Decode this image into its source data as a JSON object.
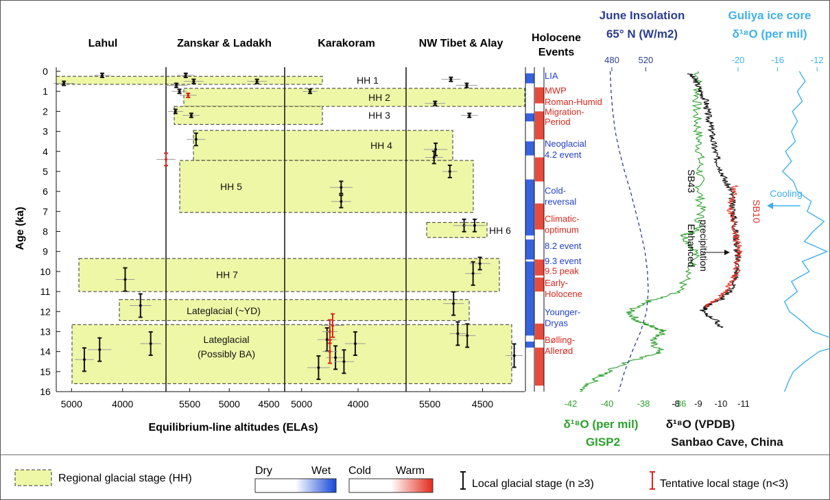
{
  "chart_data": {
    "type": "scatter",
    "ylabel": "Age (ka)",
    "ylim": [
      16,
      0
    ],
    "y_ticks": [
      "0",
      "1",
      "2",
      "3",
      "4",
      "5",
      "6",
      "7",
      "8",
      "9",
      "10",
      "11",
      "12",
      "13",
      "14",
      "15",
      "16"
    ],
    "xlabel": "Equilibrium-line altitudes (ELAs)",
    "regions": [
      {
        "name": "Lahul",
        "x_ticks": [
          "5000",
          "4000"
        ]
      },
      {
        "name": "Zanskar & Ladakh",
        "x_ticks": [
          "5500",
          "5000",
          "4500"
        ]
      },
      {
        "name": "Karakoram",
        "x_ticks": [
          "5000",
          "4000"
        ]
      },
      {
        "name": "NW Tibet & Alay",
        "x_ticks": [
          "5500",
          "4500"
        ]
      }
    ],
    "regional_stages": [
      {
        "label": "HH 1",
        "age_start": 0.25,
        "age_end": 0.65
      },
      {
        "label": "HH 2",
        "age_start": 0.85,
        "age_end": 1.75
      },
      {
        "label": "HH 3",
        "age_start": 1.75,
        "age_end": 2.65
      },
      {
        "label": "HH 4",
        "age_start": 2.95,
        "age_end": 4.45
      },
      {
        "label": "HH 5",
        "age_start": 4.45,
        "age_end": 7.05
      },
      {
        "label": "HH 6",
        "age_start": 7.55,
        "age_end": 8.3
      },
      {
        "label": "HH 7",
        "age_start": 9.35,
        "age_end": 11.0
      },
      {
        "label": "Lateglacial (~YD)",
        "age_start": 11.4,
        "age_end": 12.45
      },
      {
        "label": "Lateglacial",
        "label2": "(Possibly BA)",
        "age_start": 12.65,
        "age_end": 15.6
      }
    ],
    "holocene_events": {
      "title": "Holocene",
      "title2": "Events",
      "labels": [
        {
          "text": "LIA",
          "age": 0.2,
          "kind": "cold"
        },
        {
          "text": "MWP",
          "age": 0.95,
          "kind": "warm"
        },
        {
          "text": "Roman-Humid",
          "age": 1.5,
          "kind": "warm"
        },
        {
          "text": "Migration-",
          "age": 2.0,
          "kind": "warm"
        },
        {
          "text": "Period",
          "age": 2.5,
          "kind": "warm"
        },
        {
          "text": "Neoglacial",
          "age": 3.6,
          "kind": "cold"
        },
        {
          "text": "4.2 event",
          "age": 4.15,
          "kind": "cold"
        },
        {
          "text": "Cold-",
          "age": 5.95,
          "kind": "cold"
        },
        {
          "text": "reversal",
          "age": 6.5,
          "kind": "cold"
        },
        {
          "text": "Climatic-",
          "age": 7.35,
          "kind": "warm"
        },
        {
          "text": "optimum",
          "age": 7.9,
          "kind": "warm"
        },
        {
          "text": "8.2 event",
          "age": 8.7,
          "kind": "cold"
        },
        {
          "text": "9.3 event",
          "age": 9.45,
          "kind": "cold"
        },
        {
          "text": "9.5 peak",
          "age": 9.95,
          "kind": "warm"
        },
        {
          "text": "Early-",
          "age": 10.55,
          "kind": "warm"
        },
        {
          "text": "Holocene",
          "age": 11.1,
          "kind": "warm"
        },
        {
          "text": "Younger-",
          "age": 12.0,
          "kind": "cold"
        },
        {
          "text": "Dryas",
          "age": 12.55,
          "kind": "cold"
        },
        {
          "text": "Bølling-",
          "age": 13.4,
          "kind": "warm"
        },
        {
          "text": "Allerød",
          "age": 13.95,
          "kind": "warm"
        }
      ]
    },
    "june_insolation": {
      "title": "June Insolation",
      "subtitle": "65° N (W/m2)",
      "ticks": [
        "480",
        "520"
      ],
      "values": [
        [
          0,
          478
        ],
        [
          1,
          479
        ],
        [
          2,
          481
        ],
        [
          3,
          484
        ],
        [
          4,
          489
        ],
        [
          5,
          495
        ],
        [
          6,
          502
        ],
        [
          7,
          508
        ],
        [
          8,
          514
        ],
        [
          9,
          519
        ],
        [
          10,
          522
        ],
        [
          11,
          523
        ],
        [
          12,
          521
        ],
        [
          13,
          514
        ],
        [
          14,
          504
        ],
        [
          15,
          495
        ],
        [
          16,
          488
        ]
      ]
    },
    "guliya": {
      "title": "Guliya ice core",
      "subtitle": "δ¹⁸O (per mil)",
      "ticks": [
        "-20",
        "-16",
        "-12"
      ],
      "annotation": "Cooling",
      "values": [
        [
          0,
          -13.8
        ],
        [
          0.5,
          -13.2
        ],
        [
          1,
          -14.0
        ],
        [
          1.5,
          -13.5
        ],
        [
          2,
          -14.5
        ],
        [
          2.5,
          -14.0
        ],
        [
          3,
          -14.6
        ],
        [
          3.5,
          -14.2
        ],
        [
          4,
          -15.2
        ],
        [
          4.5,
          -14.6
        ],
        [
          5,
          -15.5
        ],
        [
          5.5,
          -14.4
        ],
        [
          6,
          -14.0
        ],
        [
          6.5,
          -12.6
        ],
        [
          7,
          -13.0
        ],
        [
          7.5,
          -11.3
        ],
        [
          8,
          -12.4
        ],
        [
          8.5,
          -13.3
        ],
        [
          9,
          -11.0
        ],
        [
          9.5,
          -13.5
        ],
        [
          10,
          -12.8
        ],
        [
          10.5,
          -14.6
        ],
        [
          11,
          -14.0
        ],
        [
          11.5,
          -15.3
        ],
        [
          12,
          -14.8
        ],
        [
          12.5,
          -13.5
        ],
        [
          13,
          -12.4
        ],
        [
          13.6,
          -9.0
        ],
        [
          14,
          -11.8
        ],
        [
          14.5,
          -13.2
        ],
        [
          15,
          -14.4
        ],
        [
          15.5,
          -14.9
        ],
        [
          16,
          -15.3
        ]
      ]
    },
    "gisp2": {
      "title": "δ¹⁸O (per mil)",
      "subtitle": "GISP2",
      "ticks": [
        "-42",
        "-40",
        "-38",
        "-36"
      ],
      "values": [
        [
          0,
          -35.0
        ],
        [
          1,
          -35.0
        ],
        [
          2,
          -35.1
        ],
        [
          3,
          -35.0
        ],
        [
          4,
          -34.9
        ],
        [
          5,
          -34.9
        ],
        [
          6,
          -34.9
        ],
        [
          7,
          -34.8
        ],
        [
          8,
          -35.1
        ],
        [
          8.2,
          -35.8
        ],
        [
          9,
          -35.1
        ],
        [
          10,
          -35.4
        ],
        [
          11,
          -36.1
        ],
        [
          11.5,
          -37.8
        ],
        [
          12,
          -38.8
        ],
        [
          12.5,
          -38.3
        ],
        [
          12.8,
          -37.3
        ],
        [
          13,
          -36.8
        ],
        [
          13.5,
          -37.6
        ],
        [
          14,
          -37.0
        ],
        [
          14.5,
          -38.8
        ],
        [
          15,
          -40.0
        ],
        [
          15.5,
          -40.8
        ],
        [
          16,
          -41.5
        ]
      ]
    },
    "sanbao": {
      "title": "δ¹⁸O (VPDB)",
      "subtitle": "Sanbao Cave, China",
      "ticks": [
        "-8",
        "-9",
        "-10",
        "-11"
      ],
      "series": [
        {
          "name": "SB43",
          "values": [
            [
              0.1,
              -8.6
            ],
            [
              0.5,
              -8.9
            ],
            [
              1,
              -9.1
            ],
            [
              1.5,
              -9.35
            ],
            [
              2,
              -9.4
            ],
            [
              2.5,
              -9.5
            ],
            [
              3,
              -9.6
            ],
            [
              3.5,
              -9.65
            ],
            [
              4,
              -9.75
            ],
            [
              4.5,
              -9.85
            ],
            [
              5,
              -10.05
            ],
            [
              5.5,
              -10.2
            ],
            [
              6,
              -10.45
            ],
            [
              6.5,
              -10.5
            ],
            [
              7,
              -10.55
            ],
            [
              7.5,
              -10.6
            ],
            [
              8,
              -10.65
            ],
            [
              8.5,
              -10.7
            ],
            [
              9,
              -10.7
            ],
            [
              9.5,
              -10.75
            ],
            [
              10,
              -10.7
            ],
            [
              10.5,
              -10.6
            ],
            [
              11,
              -10.35
            ],
            [
              11.4,
              -10.0
            ],
            [
              11.7,
              -9.4
            ],
            [
              12,
              -9.15
            ],
            [
              12.4,
              -9.75
            ],
            [
              12.8,
              -10.0
            ]
          ]
        },
        {
          "name": "SB10",
          "values": [
            [
              5.7,
              -10.6
            ],
            [
              6.2,
              -10.55
            ],
            [
              6.8,
              -10.4
            ],
            [
              7.4,
              -10.5
            ],
            [
              8,
              -10.6
            ],
            [
              8.5,
              -10.75
            ],
            [
              9,
              -10.8
            ],
            [
              9.5,
              -10.7
            ],
            [
              10,
              -10.7
            ],
            [
              10.5,
              -10.5
            ],
            [
              11,
              -10.2
            ],
            [
              11.4,
              -9.8
            ],
            [
              11.8,
              -9.3
            ]
          ]
        }
      ],
      "annotation1": "Enhanced",
      "annotation2": "precipitation"
    },
    "glacial_stages": [
      {
        "region": "Lahul",
        "elas": [
          {
            "x": 5150,
            "age": 0.6
          },
          {
            "x": 4400,
            "age": 0.2
          },
          {
            "x": 3950,
            "age": 10.4
          },
          {
            "x": 3650,
            "age": 11.7
          },
          {
            "x": 4750,
            "age": 14.4
          },
          {
            "x": 4450,
            "age": 13.9
          },
          {
            "x": 3450,
            "age": 13.6
          }
        ]
      },
      {
        "region": "Zanskar & Ladakh",
        "elas": [
          {
            "x": 5550,
            "age": 0.2
          },
          {
            "x": 5450,
            "age": 0.5
          },
          {
            "x": 4650,
            "age": 0.5
          },
          {
            "x": 5670,
            "age": 0.7
          },
          {
            "x": 5630,
            "age": 1.0
          },
          {
            "x": 5680,
            "age": 2.0
          },
          {
            "x": 5480,
            "age": 2.2
          },
          {
            "x": 5420,
            "age": 3.4
          }
        ]
      },
      {
        "region": "Karakoram",
        "elas": [
          {
            "x": 4850,
            "age": 1.0
          },
          {
            "x": 4300,
            "age": 5.8
          },
          {
            "x": 4300,
            "age": 6.5
          },
          {
            "x": 4700,
            "age": 14.8
          },
          {
            "x": 4550,
            "age": 13.4
          },
          {
            "x": 4400,
            "age": 14.3
          },
          {
            "x": 4250,
            "age": 14.5
          },
          {
            "x": 4050,
            "age": 13.6
          }
        ]
      },
      {
        "region": "NW Tibet & Alay",
        "elas": [
          {
            "x": 5100,
            "age": 0.4
          },
          {
            "x": 4800,
            "age": 0.7
          },
          {
            "x": 5400,
            "age": 1.6
          },
          {
            "x": 4750,
            "age": 2.2
          },
          {
            "x": 5390,
            "age": 3.9
          },
          {
            "x": 5420,
            "age": 4.3
          },
          {
            "x": 5120,
            "age": 5.0
          },
          {
            "x": 4850,
            "age": 7.7
          },
          {
            "x": 4650,
            "age": 7.7
          },
          {
            "x": 4550,
            "age": 9.6
          },
          {
            "x": 4680,
            "age": 10.1
          },
          {
            "x": 5050,
            "age": 11.6
          },
          {
            "x": 4970,
            "age": 13.1
          },
          {
            "x": 4790,
            "age": 13.2
          },
          {
            "x": 3900,
            "age": 14.2
          }
        ]
      }
    ],
    "tentative_stages": [
      {
        "region": "Zanskar & Ladakh",
        "elas": [
          {
            "x": 5520,
            "age": 1.2
          },
          {
            "x": 5800,
            "age": 4.4
          }
        ]
      },
      {
        "region": "Karakoram",
        "elas": [
          {
            "x": 4500,
            "age": 13.0
          },
          {
            "x": 4450,
            "age": 12.7
          },
          {
            "x": 4500,
            "age": 14.0
          }
        ]
      }
    ]
  },
  "legend": {
    "regional_stage": "Regional glacial stage (HH)",
    "dry": "Dry",
    "wet": "Wet",
    "cold": "Cold",
    "warm": "Warm",
    "local_stage": "Local glacial stage (n ≥3)",
    "tentative_stage": "Tentative local stage (n<3)"
  },
  "colors": {
    "stage_fill": "#eef7a6",
    "local": "#111111",
    "tentative": "#d9261c",
    "gisp2": "#2ca02c",
    "sanbao": "#111111",
    "sb10": "#e53022",
    "insolation": "#2a3d8f",
    "guliya": "#3fb0ee",
    "cold_text": "#1f3fcc",
    "warm_text": "#d9261c"
  }
}
